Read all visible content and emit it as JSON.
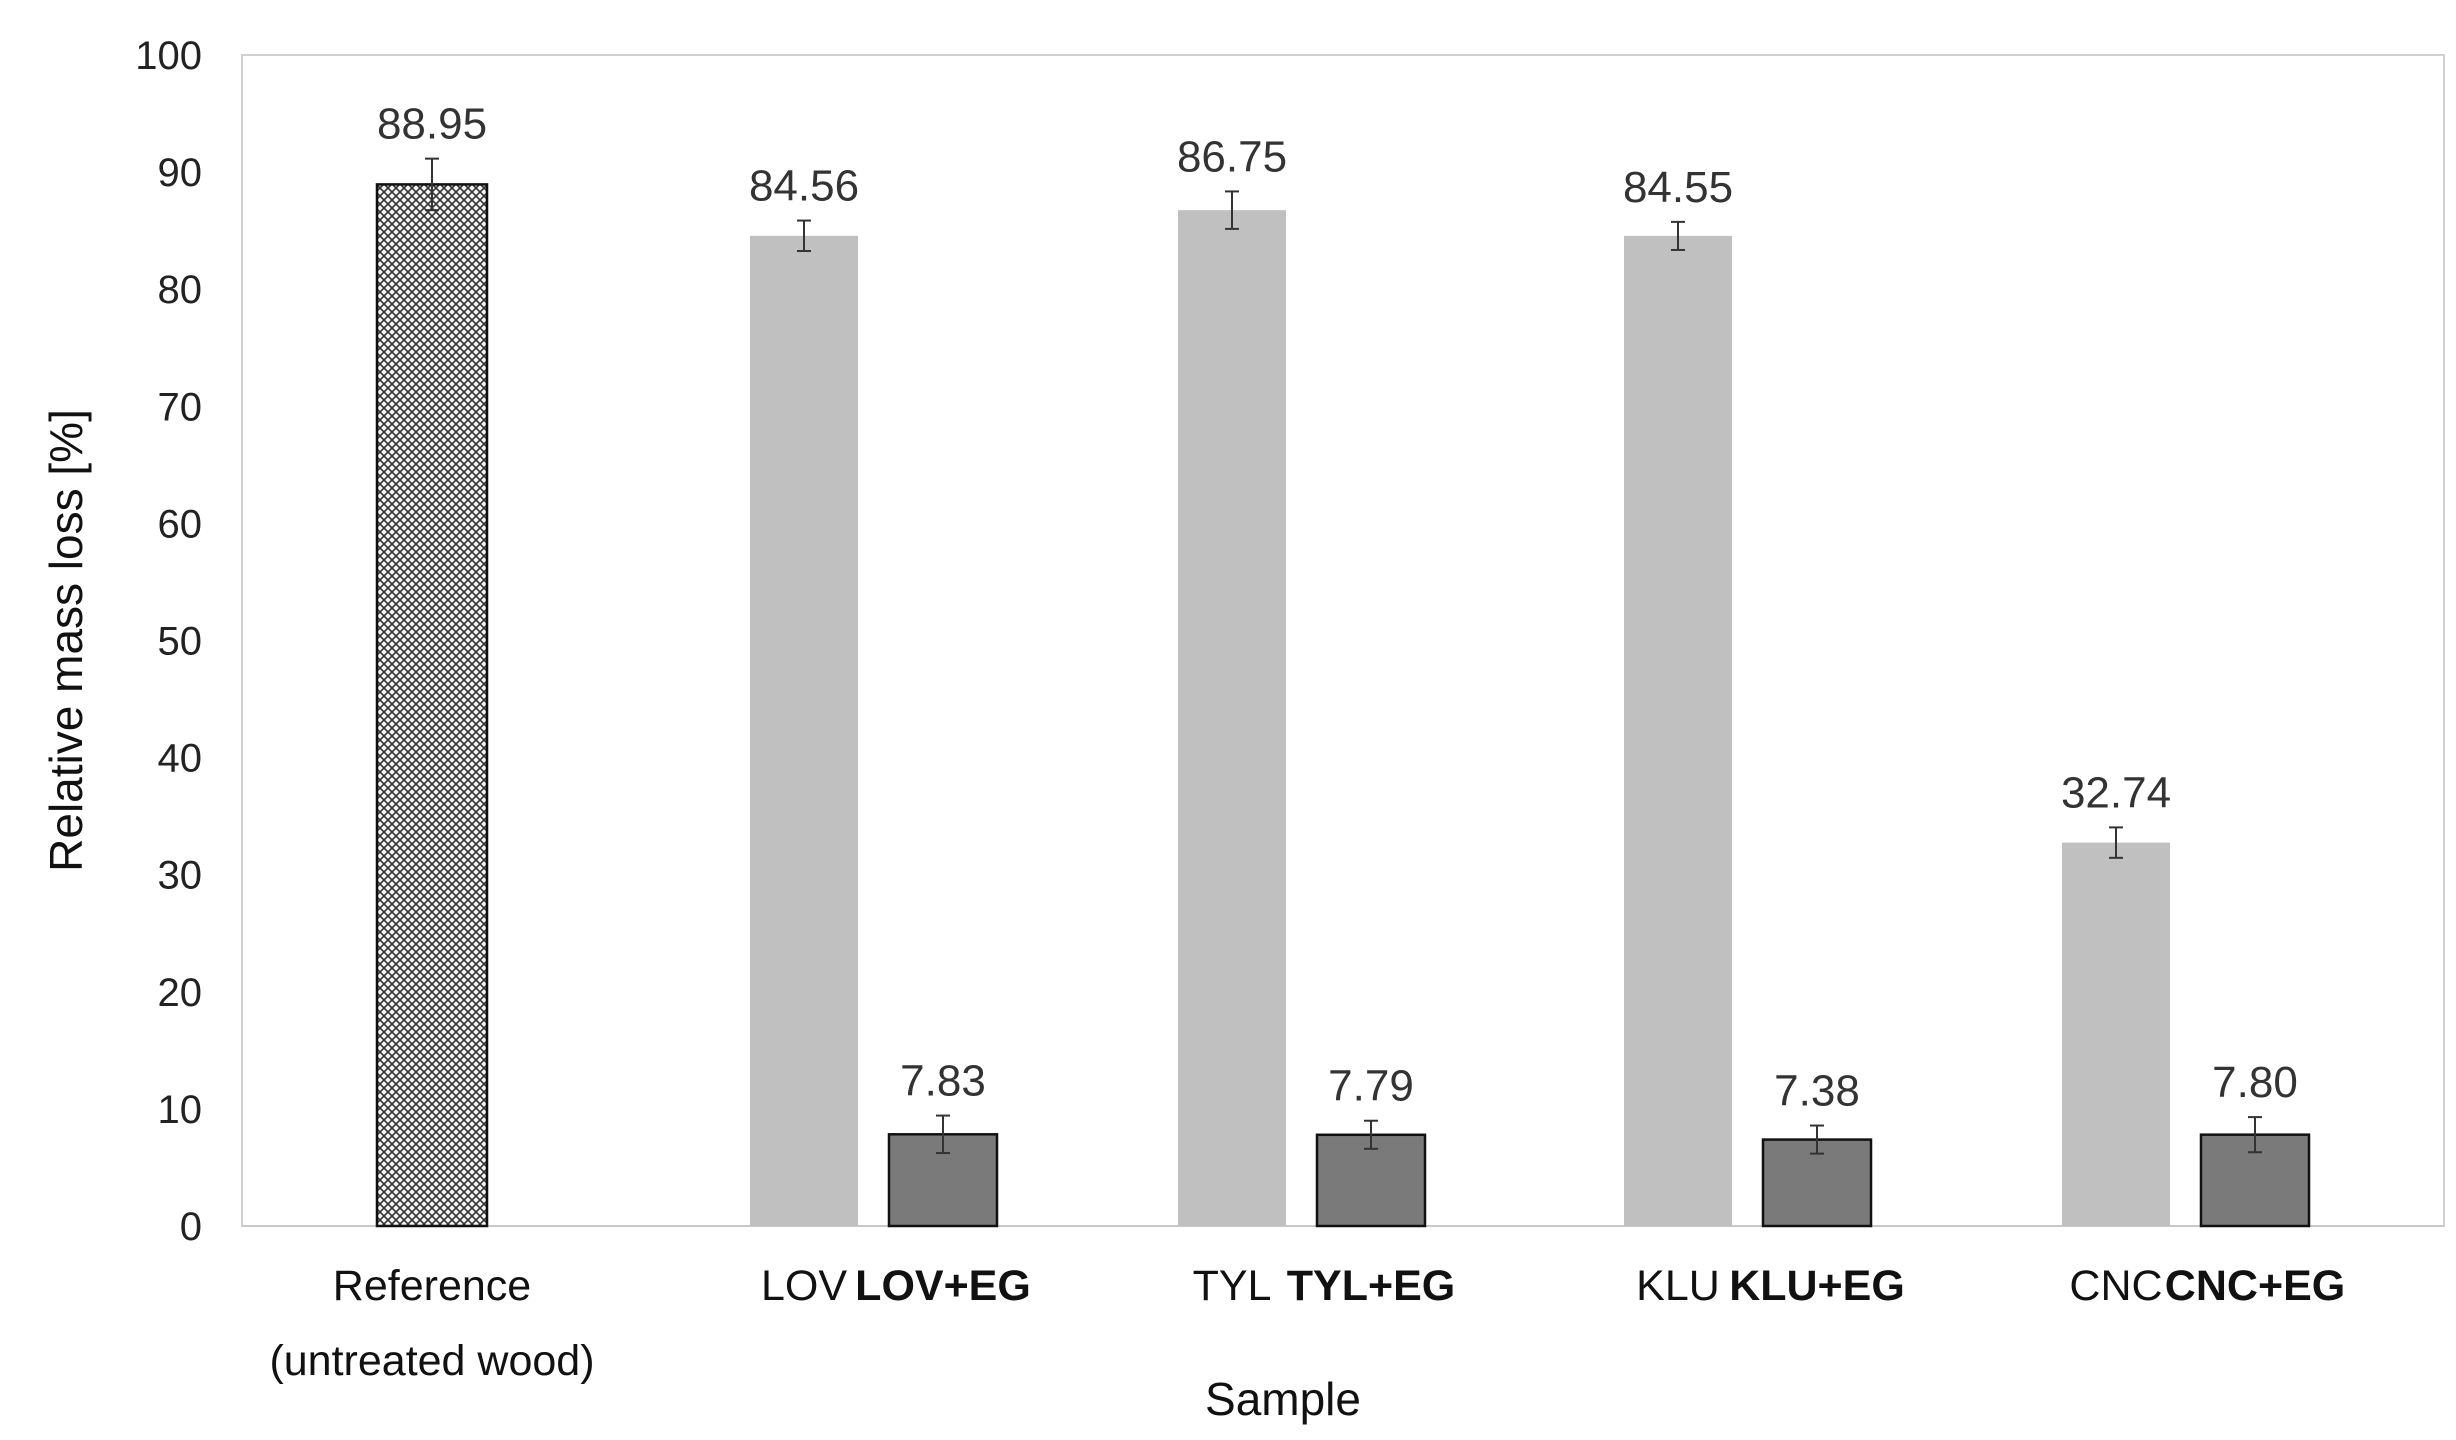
{
  "chart_data": {
    "type": "bar",
    "xlabel": "Sample",
    "ylabel": "Relative mass loss [%]",
    "ylim": [
      0,
      100
    ],
    "yticks": [
      0,
      10,
      20,
      30,
      40,
      50,
      60,
      70,
      80,
      90,
      100
    ],
    "grid": false,
    "bars": [
      {
        "category": "Reference\n(untreated wood)",
        "value": 88.95,
        "label": "88.95",
        "error": 2.2,
        "style": "crosshatch",
        "color": "#b5b5b5",
        "bold_label": false
      },
      {
        "category": "LOV",
        "value": 84.56,
        "label": "84.56",
        "error": 1.3,
        "style": "solid",
        "color": "#c0c0c0",
        "bold_label": false
      },
      {
        "category": "LOV+EG",
        "value": 7.83,
        "label": "7.83",
        "error": 1.6,
        "style": "solid",
        "color": "#7a7a7a",
        "bold_label": true
      },
      {
        "category": "TYL",
        "value": 86.75,
        "label": "86.75",
        "error": 1.6,
        "style": "solid",
        "color": "#c0c0c0",
        "bold_label": false
      },
      {
        "category": "TYL+EG",
        "value": 7.79,
        "label": "7.79",
        "error": 1.2,
        "style": "solid",
        "color": "#7a7a7a",
        "bold_label": true
      },
      {
        "category": "KLU",
        "value": 84.55,
        "label": "84.55",
        "error": 1.2,
        "style": "solid",
        "color": "#c0c0c0",
        "bold_label": false
      },
      {
        "category": "KLU+EG",
        "value": 7.38,
        "label": "7.38",
        "error": 1.2,
        "style": "solid",
        "color": "#7a7a7a",
        "bold_label": true
      },
      {
        "category": "CNC",
        "value": 32.74,
        "label": "32.74",
        "error": 1.3,
        "style": "solid",
        "color": "#c0c0c0",
        "bold_label": false
      },
      {
        "category": "CNC+EG",
        "value": 7.8,
        "label": "7.80",
        "error": 1.5,
        "style": "solid",
        "color": "#7a7a7a",
        "bold_label": true
      }
    ]
  }
}
